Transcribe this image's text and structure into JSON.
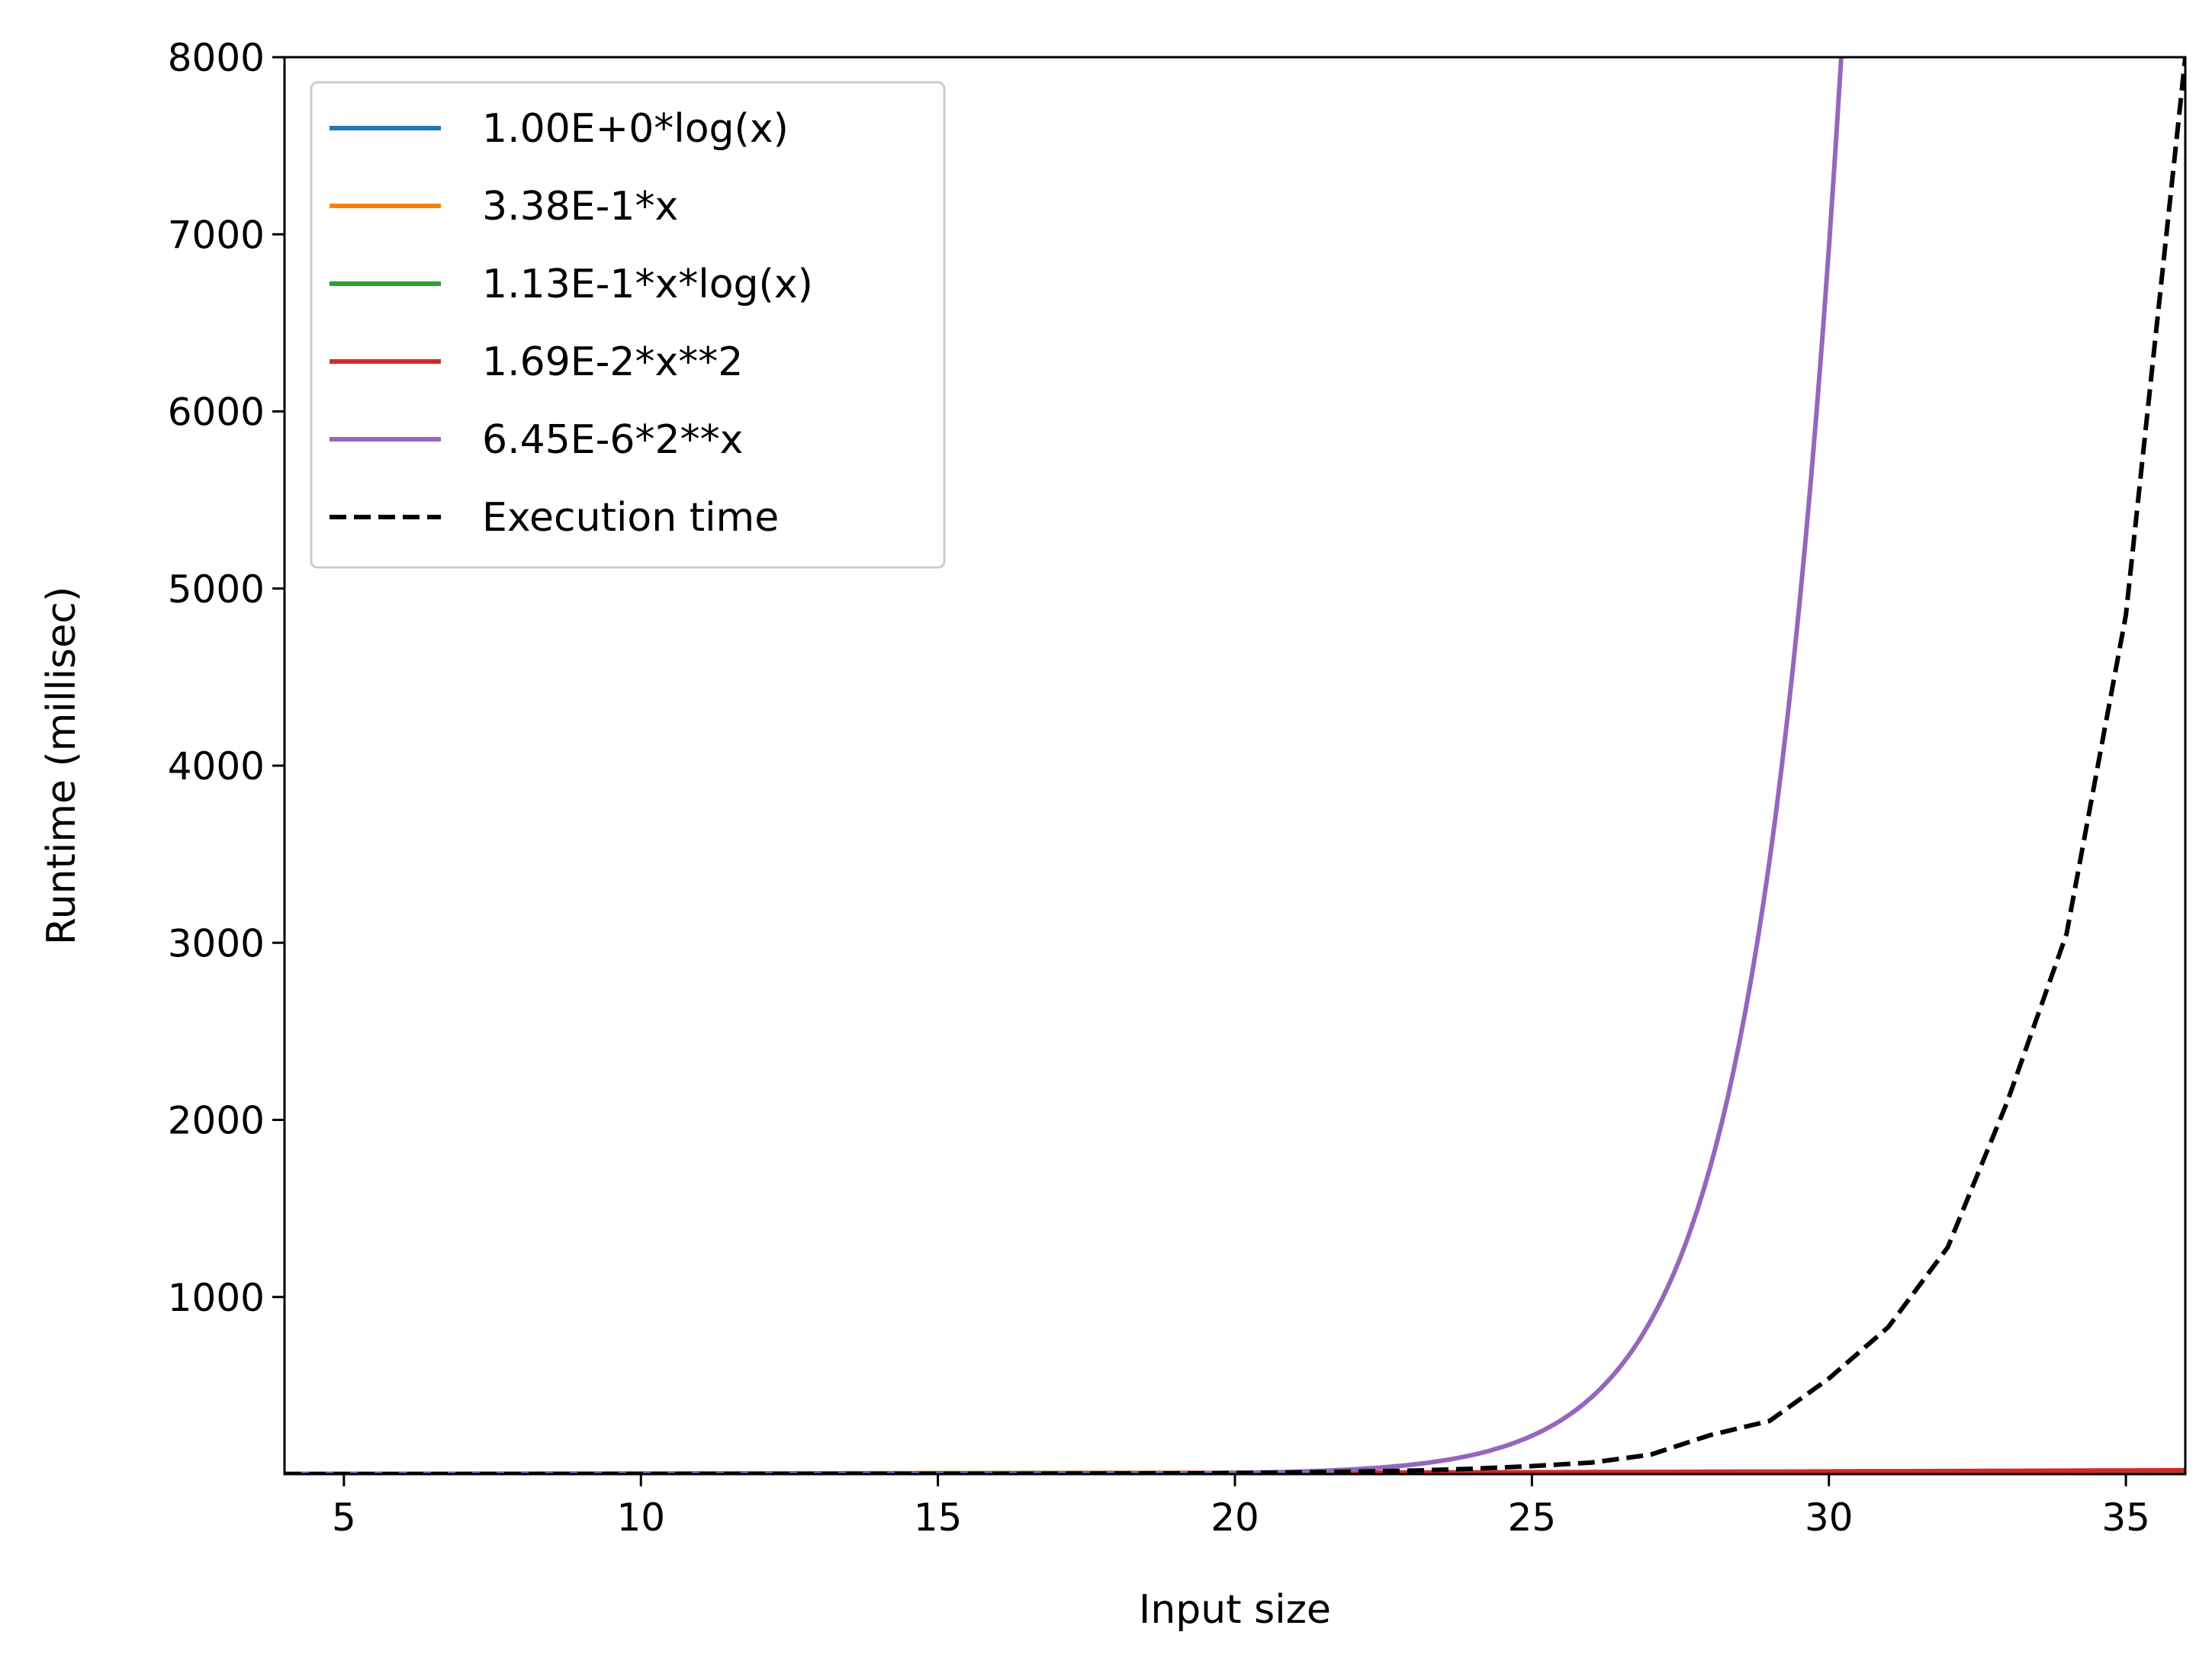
{
  "chart_data": {
    "type": "line",
    "title": "",
    "xlabel": "Input size",
    "ylabel": "Runtime (millisec)",
    "xlim": [
      4,
      36
    ],
    "ylim": [
      0,
      8000
    ],
    "xticks": [
      5,
      10,
      15,
      20,
      25,
      30,
      35
    ],
    "yticks": [
      1000,
      2000,
      3000,
      4000,
      5000,
      6000,
      7000,
      8000
    ],
    "grid": false,
    "legend_position": "top-left",
    "series": [
      {
        "name": "1.00E+0*log(x)",
        "color": "#1f77b4",
        "style": "solid",
        "model": "log",
        "coefficient": 1.0
      },
      {
        "name": "3.38E-1*x",
        "color": "#ff7f0e",
        "style": "solid",
        "model": "linear",
        "coefficient": 0.338
      },
      {
        "name": "1.13E-1*x*log(x)",
        "color": "#2ca02c",
        "style": "solid",
        "model": "xlogx",
        "coefficient": 0.113
      },
      {
        "name": "1.69E-2*x**2",
        "color": "#d62728",
        "style": "solid",
        "model": "quadratic",
        "coefficient": 0.0169
      },
      {
        "name": "6.45E-6*2**x",
        "color": "#9467bd",
        "style": "solid",
        "model": "exponential",
        "coefficient": 6.45e-06
      },
      {
        "name": "Execution time",
        "color": "#000000",
        "style": "dashed",
        "x": [
          4,
          5,
          6,
          7,
          8,
          9,
          10,
          11,
          12,
          13,
          14,
          15,
          16,
          17,
          18,
          19,
          20,
          21,
          22,
          23,
          24,
          25,
          26,
          27,
          28,
          29,
          30,
          31,
          32,
          33,
          34,
          35,
          36
        ],
        "y": [
          0,
          0,
          0,
          0,
          0,
          0,
          0,
          0,
          0,
          0,
          1,
          1,
          1,
          2,
          3,
          4,
          6,
          9,
          14,
          20,
          30,
          45,
          65,
          110,
          220,
          300,
          540,
          830,
          1280,
          2100,
          3050,
          4850,
          8000
        ]
      }
    ]
  }
}
